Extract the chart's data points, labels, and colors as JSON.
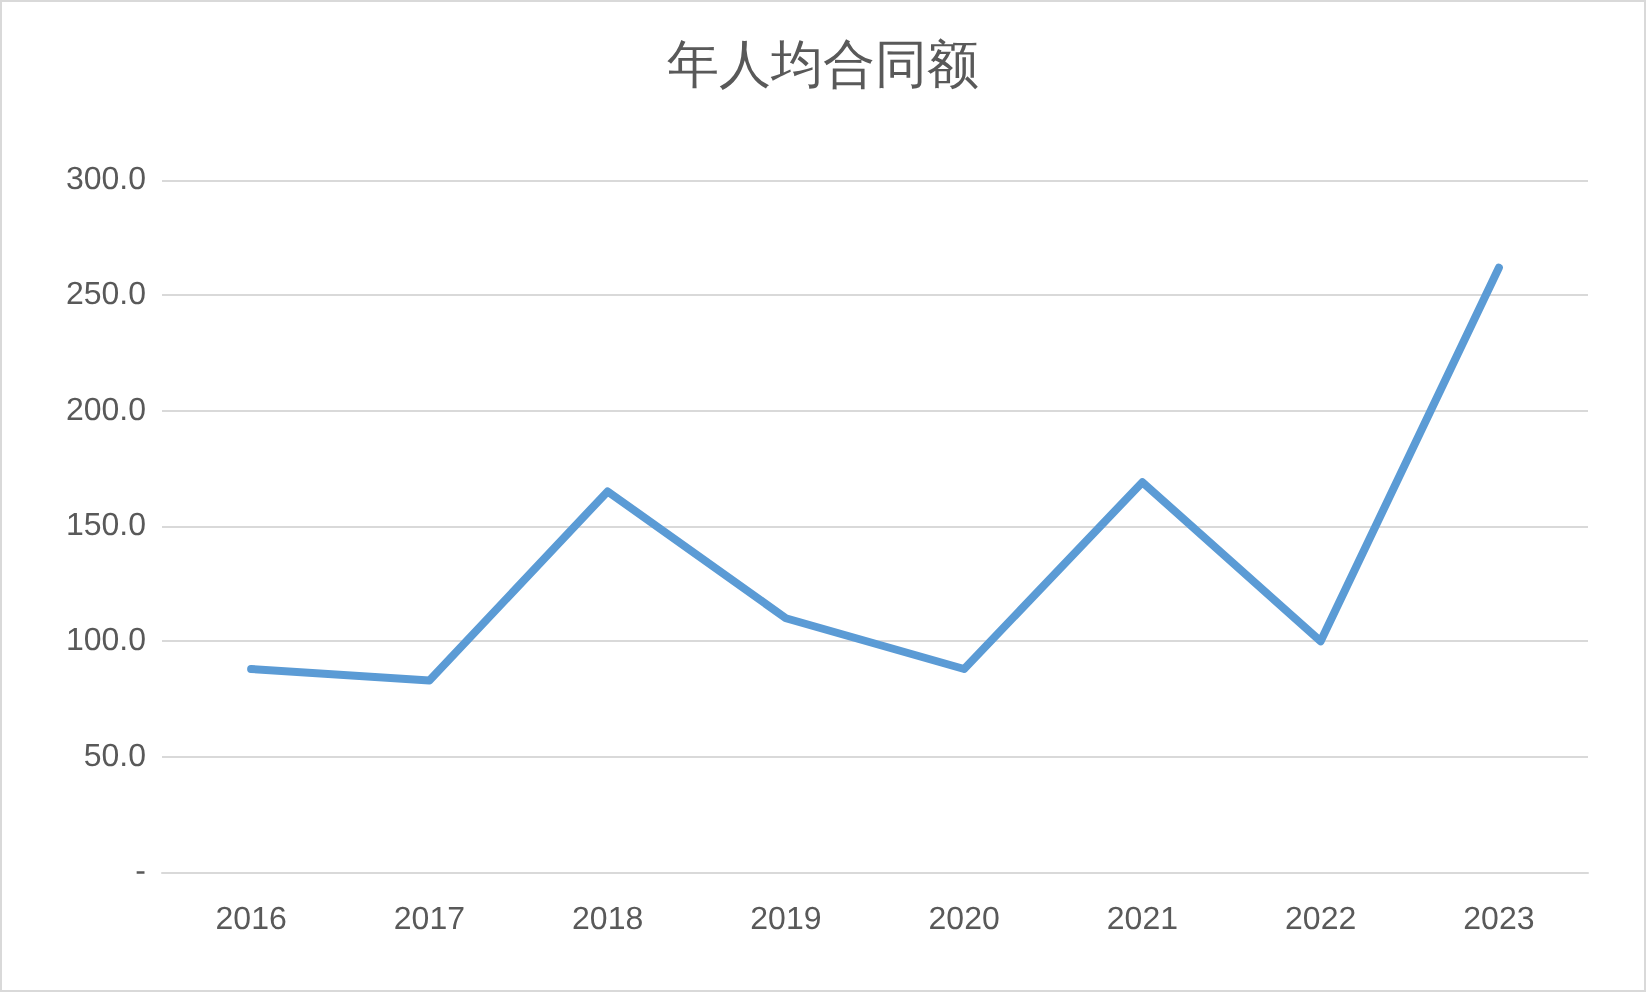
{
  "chart_data": {
    "type": "line",
    "title": "年人均合同额",
    "categories": [
      "2016",
      "2017",
      "2018",
      "2019",
      "2020",
      "2021",
      "2022",
      "2023"
    ],
    "series": [
      {
        "color": "#5b9bd5",
        "values": [
          88,
          83,
          165,
          110,
          88,
          169,
          100,
          262
        ]
      }
    ],
    "ylim": [
      0,
      300
    ],
    "yticks": [
      {
        "value": 0,
        "label": "-"
      },
      {
        "value": 50,
        "label": "50.0"
      },
      {
        "value": 100,
        "label": "100.0"
      },
      {
        "value": 150,
        "label": "150.0"
      },
      {
        "value": 200,
        "label": "200.0"
      },
      {
        "value": 250,
        "label": "250.0"
      },
      {
        "value": 300,
        "label": "300.0"
      }
    ],
    "grid": "y",
    "marker": "none",
    "line_style": "solid"
  }
}
